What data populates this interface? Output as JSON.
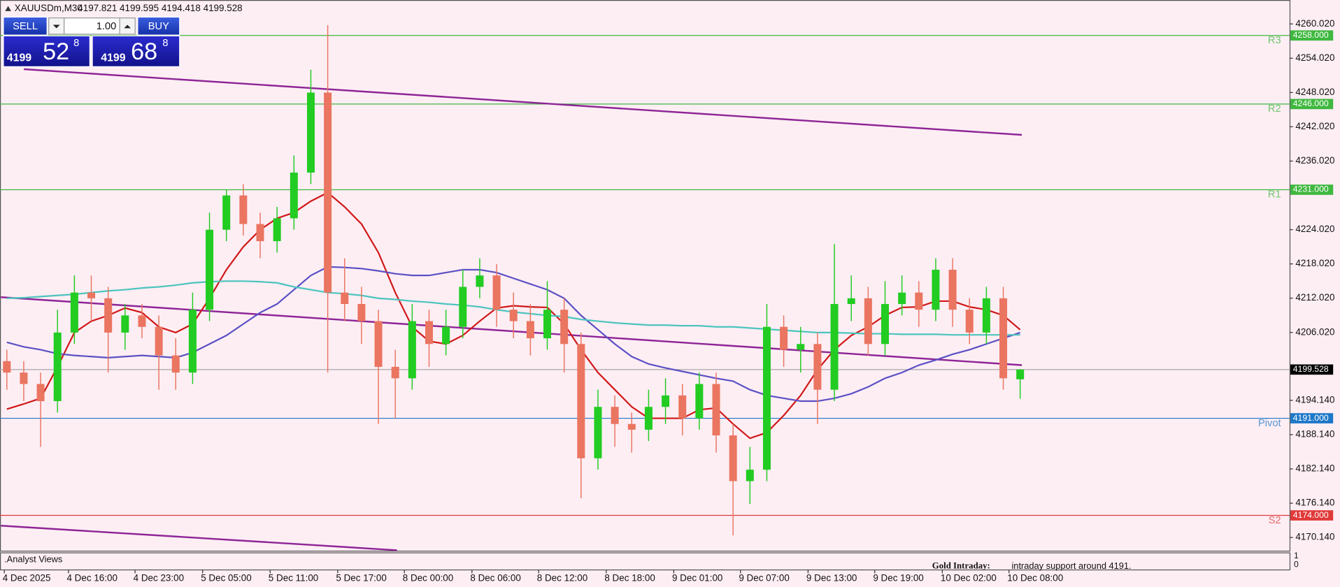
{
  "header": {
    "symbol": "XAUUSDm,M30",
    "quote": "4197.821 4199.595 4194.418 4199.528"
  },
  "trade_panel": {
    "sell": "SELL",
    "buy": "BUY",
    "volume": "1.00",
    "sell_price": {
      "big": "4199",
      "pips": "52",
      "frac": "8"
    },
    "buy_price": {
      "big": "4199",
      "pips": "68",
      "frac": "8"
    }
  },
  "chart_data": {
    "type": "candlestick",
    "xlim": [
      -0.405,
      75.95
    ],
    "ylim": [
      4167.75,
      4263.46
    ],
    "xticks": [
      {
        "value": -0.15,
        "label": "4 Dec 2025"
      },
      {
        "value": 3.65,
        "label": "4 Dec 16:00"
      },
      {
        "value": 7.59,
        "label": "4 Dec 23:00"
      },
      {
        "value": 11.59,
        "label": "5 Dec 05:00"
      },
      {
        "value": 15.59,
        "label": "5 Dec 11:00"
      },
      {
        "value": 19.59,
        "label": "5 Dec 17:00"
      },
      {
        "value": 23.54,
        "label": "8 Dec 00:00"
      },
      {
        "value": 27.54,
        "label": "8 Dec 06:00"
      },
      {
        "value": 31.49,
        "label": "8 Dec 12:00"
      },
      {
        "value": 35.49,
        "label": "8 Dec 18:00"
      },
      {
        "value": 39.49,
        "label": "9 Dec 01:00"
      },
      {
        "value": 43.44,
        "label": "9 Dec 07:00"
      },
      {
        "value": 47.44,
        "label": "9 Dec 13:00"
      },
      {
        "value": 51.39,
        "label": "9 Dec 19:00"
      },
      {
        "value": 55.39,
        "label": "10 Dec 02:00"
      },
      {
        "value": 59.34,
        "label": "10 Dec 08:00"
      }
    ],
    "yticks": [
      {
        "value": 4260.02,
        "label": "4260.020"
      },
      {
        "value": 4254.02,
        "label": "4254.020"
      },
      {
        "value": 4248.02,
        "label": "4248.020"
      },
      {
        "value": 4242.02,
        "label": "4242.020"
      },
      {
        "value": 4236.02,
        "label": "4236.020"
      },
      {
        "value": 4224.02,
        "label": "4224.020"
      },
      {
        "value": 4218.02,
        "label": "4218.020"
      },
      {
        "value": 4212.02,
        "label": "4212.020"
      },
      {
        "value": 4206.02,
        "label": "4206.020"
      },
      {
        "value": 4194.14,
        "label": "4194.140"
      },
      {
        "value": 4188.14,
        "label": "4188.140"
      },
      {
        "value": 4182.14,
        "label": "4182.140"
      },
      {
        "value": 4176.14,
        "label": "4176.140"
      },
      {
        "value": 4170.14,
        "label": "4170.140"
      }
    ],
    "candles": {
      "up_color": "#22cc22",
      "down_color": "#ea7560",
      "open": [
        4201,
        4199,
        4197,
        4194,
        4206,
        4213,
        4212,
        4206,
        4209,
        4207,
        4202,
        4199,
        4210,
        4224,
        4230,
        4225,
        4222,
        4226,
        4234,
        4248,
        4213,
        4211,
        4208,
        4200,
        4198,
        4208,
        4204,
        4207,
        4214,
        4216,
        4210,
        4208,
        4205,
        4210,
        4204,
        4184,
        4193,
        4190,
        4189,
        4193,
        4195,
        4191,
        4197,
        4188,
        4180,
        4182,
        4207,
        4203,
        4204,
        4196,
        4211,
        4212,
        4204,
        4211,
        4213,
        4210,
        4217,
        4210,
        4206,
        4212,
        4197.821
      ],
      "high": [
        4203,
        4201,
        4199,
        4210,
        4216,
        4216,
        4214,
        4211,
        4211,
        4209,
        4205,
        4213,
        4227,
        4231,
        4232,
        4227,
        4228,
        4237,
        4252,
        4259.8,
        4219,
        4214,
        4210,
        4203,
        4211,
        4210,
        4210,
        4217,
        4219,
        4218,
        4213,
        4211,
        4215,
        4212,
        4206,
        4196,
        4195,
        4192,
        4196,
        4198,
        4197,
        4199,
        4199,
        4190,
        4186,
        4211,
        4209,
        4207,
        4206,
        4221.5,
        4216,
        4214,
        4215,
        4216,
        4215,
        4219,
        4219,
        4212,
        4214,
        4214,
        4199.595
      ],
      "low": [
        4196,
        4194,
        4186,
        4192,
        4204,
        4208,
        4199,
        4203,
        4205,
        4196,
        4196,
        4197,
        4208,
        4222,
        4223,
        4219,
        4220,
        4224,
        4232,
        4199,
        4208,
        4204,
        4190,
        4191,
        4196,
        4200,
        4202,
        4205,
        4212,
        4207,
        4205,
        4202,
        4203,
        4199,
        4177,
        4182,
        4186,
        4185,
        4187,
        4190,
        4188,
        4189,
        4185,
        4170.5,
        4176,
        4180,
        4200,
        4199,
        4190,
        4194,
        4208,
        4202,
        4202,
        4209,
        4207,
        4208,
        4207,
        4204,
        4204,
        4196,
        4194.418
      ],
      "close": [
        4199,
        4197,
        4194,
        4206,
        4213,
        4212,
        4206,
        4209,
        4207,
        4202,
        4199,
        4210,
        4224,
        4230,
        4225,
        4222,
        4226,
        4234,
        4248,
        4213,
        4211,
        4208,
        4200,
        4198,
        4208,
        4204,
        4207,
        4214,
        4216,
        4210,
        4208,
        4205,
        4210,
        4204,
        4184,
        4193,
        4190,
        4189,
        4193,
        4195,
        4191,
        4197,
        4188,
        4180,
        4182,
        4207,
        4203,
        4204,
        4196,
        4211,
        4212,
        4204,
        4211,
        4213,
        4210,
        4217,
        4210,
        4206,
        4212,
        4198,
        4199.528
      ]
    },
    "series": [
      {
        "color": "#d01818",
        "values": [
          4192.6,
          4193.5,
          4194.5,
          4200,
          4206,
          4208,
          4209,
          4210.3,
          4209.5,
          4207,
          4206,
          4207.5,
          4212,
          4217,
          4221,
          4224,
          4226,
          4227,
          4229,
          4230.5,
          4228,
          4225,
          4220,
          4213,
          4207,
          4204.5,
          4204,
          4205.5,
          4208,
          4210.3,
          4210.7,
          4210.5,
          4210.4,
          4207.5,
          4203,
          4199,
          4196,
          4193,
          4191,
          4191,
          4191,
          4192.5,
          4192.8,
          4190,
          4187.5,
          4188.5,
          4191.5,
          4195,
          4199.5,
          4203,
          4205.5,
          4207,
          4209,
          4210.4,
          4210.5,
          4211.5,
          4211.5,
          4210.5,
          4210,
          4209,
          4206.5
        ]
      },
      {
        "color": "#5b50c4",
        "values": [
          4204.3,
          4203.5,
          4203,
          4202.3,
          4202,
          4201.8,
          4201.6,
          4201.8,
          4202,
          4201.8,
          4201.6,
          4202.5,
          4204,
          4205.5,
          4207.5,
          4209.5,
          4211,
          4213.5,
          4216,
          4217.5,
          4217.4,
          4217.2,
          4216.8,
          4216.3,
          4216,
          4216,
          4216.5,
          4217,
          4217,
          4216.5,
          4215.5,
          4214.5,
          4213.5,
          4212,
          4209,
          4206.5,
          4204,
          4201.8,
          4200.5,
          4199.8,
          4199.2,
          4198.6,
          4198,
          4197.5,
          4196,
          4195,
          4194.5,
          4194,
          4194,
          4194.5,
          4195.3,
          4196.5,
          4198,
          4199,
          4200.3,
          4201.2,
          4202.2,
          4203,
          4204,
          4205,
          4206
        ]
      },
      {
        "color": "#4cc4bd",
        "values": [
          4212,
          4212.1,
          4212.3,
          4212.5,
          4212.7,
          4213,
          4213.3,
          4213.5,
          4213.8,
          4214,
          4214.3,
          4214.7,
          4214.9,
          4215,
          4215,
          4214.9,
          4214.7,
          4214,
          4213.5,
          4213,
          4212.8,
          4212.5,
          4212,
          4211.8,
          4211.5,
          4211.3,
          4211,
          4210.8,
          4210.5,
          4210,
          4209.6,
          4209.3,
          4209,
          4208.8,
          4208.3,
          4208,
          4207.7,
          4207.5,
          4207.3,
          4207.3,
          4207.2,
          4207.2,
          4207,
          4207,
          4206.8,
          4206.6,
          4206.4,
          4206.2,
          4206,
          4206,
          4205.9,
          4205.8,
          4205.8,
          4205.7,
          4205.7,
          4205.7,
          4205.6,
          4205.6,
          4205.6,
          4205.6,
          4205.6
        ]
      }
    ],
    "trendlines": [
      {
        "color": "#8e2596",
        "x": [
          1.01,
          60.1
        ],
        "values": [
          4252.1,
          4240.6
        ]
      },
      {
        "color": "#8e2596",
        "x": [
          -0.35,
          60.1
        ],
        "values": [
          4212.2,
          4200.3
        ]
      },
      {
        "color": "#8e2596",
        "x": [
          -0.35,
          23.1
        ],
        "values": [
          4172.2,
          4167.9
        ]
      }
    ],
    "levels": [
      {
        "label": "R3",
        "value": 4258,
        "value_label": "4258.000",
        "color": "#3fb83f"
      },
      {
        "label": "R2",
        "value": 4246,
        "value_label": "4246.000",
        "color": "#3fb83f"
      },
      {
        "label": "R1",
        "value": 4231,
        "value_label": "4231.000",
        "color": "#3fb83f"
      },
      {
        "label": "Pivot",
        "value": 4191,
        "value_label": "4191.000",
        "color": "#1e78c8"
      },
      {
        "label": "S2",
        "value": 4174,
        "value_label": "4174.000",
        "color": "#e03a3a"
      }
    ],
    "current_price": {
      "value": 4199.528,
      "value_label": "4199.528"
    }
  },
  "indicator": {
    "name": ".Analyst Views",
    "label": "Gold Intraday:",
    "text": "intraday support around 4191.",
    "yticks": [
      "1",
      "0"
    ]
  }
}
